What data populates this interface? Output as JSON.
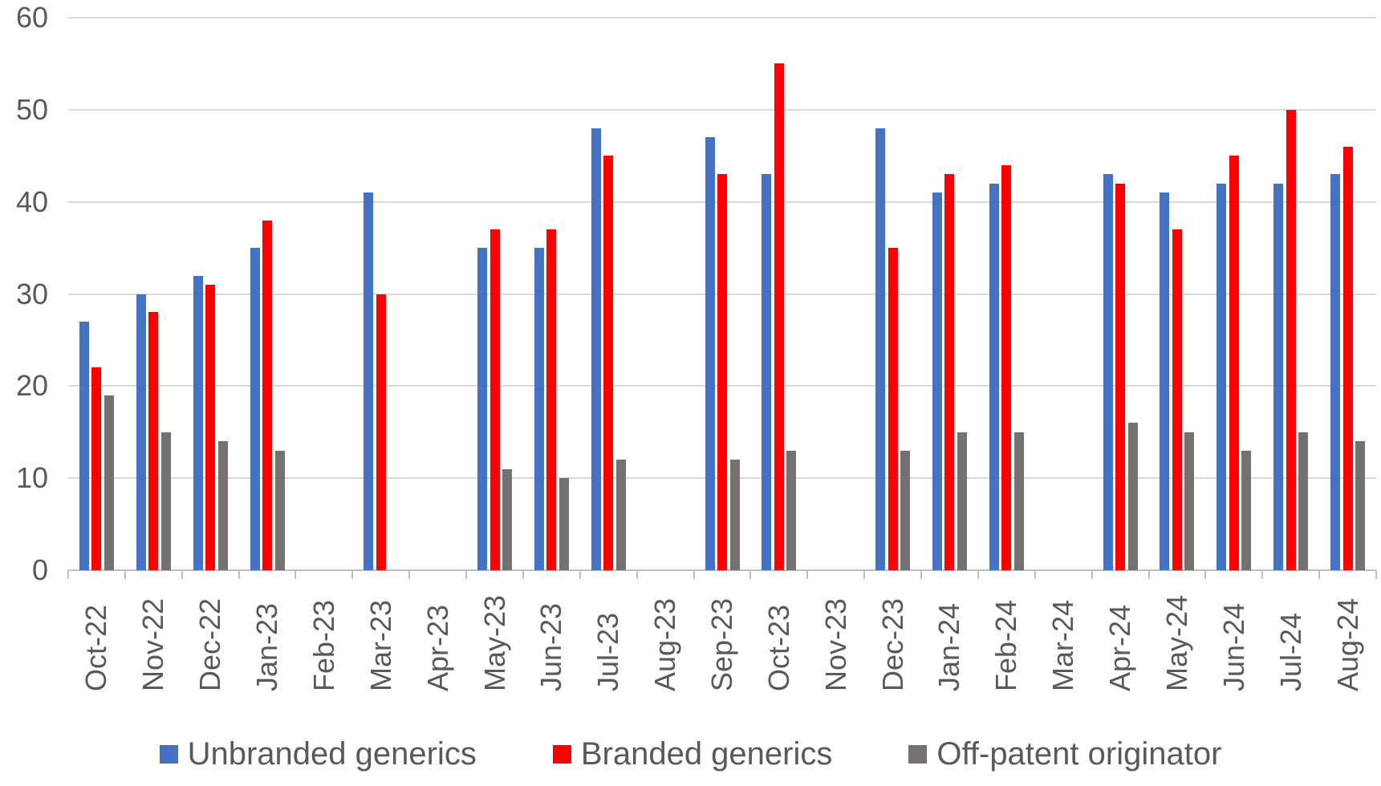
{
  "chart_data": {
    "type": "bar",
    "title": "",
    "categories": [
      "Oct-22",
      "Nov-22",
      "Dec-22",
      "Jan-23",
      "Feb-23",
      "Mar-23",
      "Apr-23",
      "May-23",
      "Jun-23",
      "Jul-23",
      "Aug-23",
      "Sep-23",
      "Oct-23",
      "Nov-23",
      "Dec-23",
      "Jan-24",
      "Feb-24",
      "Mar-24",
      "Apr-24",
      "May-24",
      "Jun-24",
      "Jul-24",
      "Aug-24"
    ],
    "series": [
      {
        "name": "Unbranded generics",
        "color": "#4472C4",
        "values": [
          27,
          30,
          32,
          35,
          null,
          41,
          null,
          35,
          35,
          48,
          null,
          47,
          43,
          null,
          48,
          41,
          42,
          null,
          43,
          41,
          42,
          42,
          43
        ]
      },
      {
        "name": "Branded generics",
        "color": "#FF0000",
        "values": [
          22,
          28,
          31,
          38,
          null,
          30,
          null,
          37,
          37,
          45,
          null,
          43,
          55,
          null,
          35,
          43,
          44,
          null,
          42,
          37,
          45,
          50,
          46
        ]
      },
      {
        "name": "Off-patent originator",
        "color": "#757171",
        "values": [
          19,
          15,
          14,
          13,
          null,
          null,
          null,
          11,
          10,
          12,
          null,
          12,
          13,
          null,
          13,
          15,
          15,
          null,
          16,
          15,
          13,
          15,
          14
        ]
      }
    ],
    "xlabel": "",
    "ylabel": "",
    "ylim": [
      0,
      60
    ],
    "y_ticks": [
      0,
      10,
      20,
      30,
      40,
      50,
      60
    ],
    "grid": true,
    "legend_position": "bottom"
  },
  "colors": {
    "gridline": "#D9D9D9",
    "axis_line": "#BFBFBF",
    "axis_text": "#595959",
    "background": "#FFFFFF"
  }
}
